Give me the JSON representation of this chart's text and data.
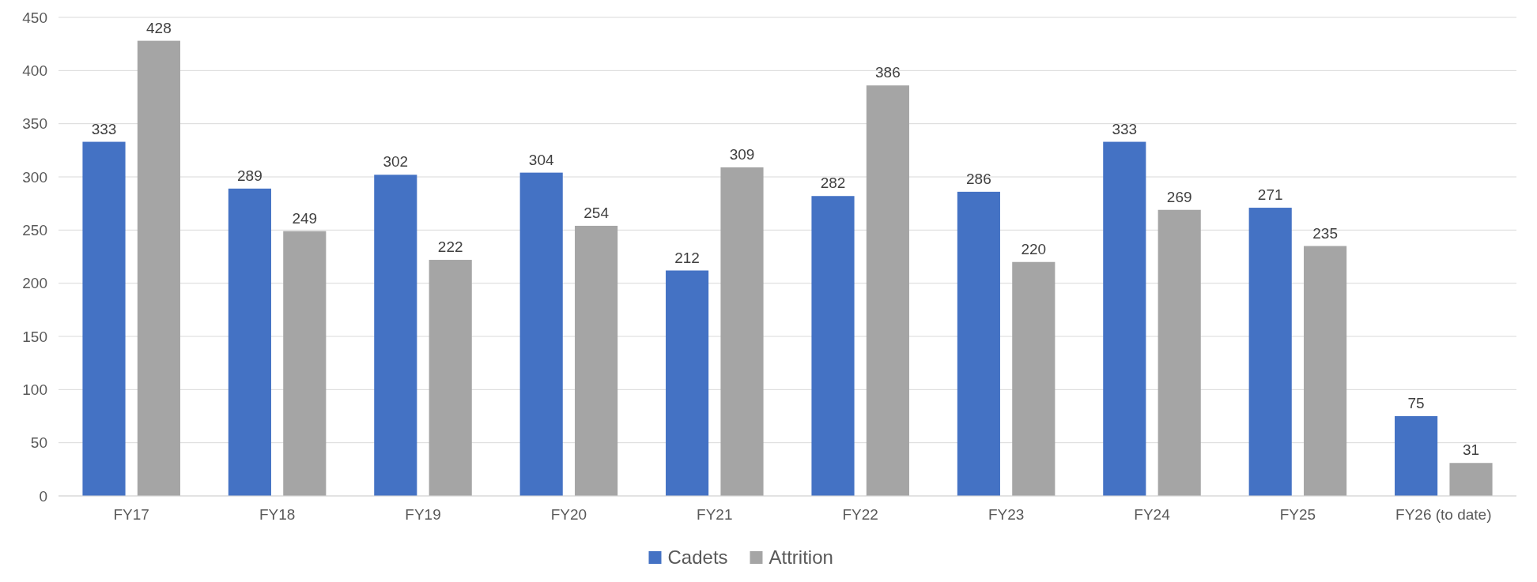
{
  "chart_data": {
    "type": "bar",
    "categories": [
      "FY17",
      "FY18",
      "FY19",
      "FY20",
      "FY21",
      "FY22",
      "FY23",
      "FY24",
      "FY25",
      "FY26 (to date)"
    ],
    "series": [
      {
        "name": "Cadets",
        "color": "#4472c4",
        "values": [
          333,
          289,
          302,
          304,
          212,
          282,
          286,
          333,
          271,
          75
        ]
      },
      {
        "name": "Attrition",
        "color": "#a5a5a5",
        "values": [
          428,
          249,
          222,
          254,
          309,
          386,
          220,
          269,
          235,
          31
        ]
      }
    ],
    "ylim": [
      0,
      450
    ],
    "yticks": [
      0,
      50,
      100,
      150,
      200,
      250,
      300,
      350,
      400,
      450
    ],
    "grid": "y",
    "legend": "bottom",
    "data_labels": true
  }
}
